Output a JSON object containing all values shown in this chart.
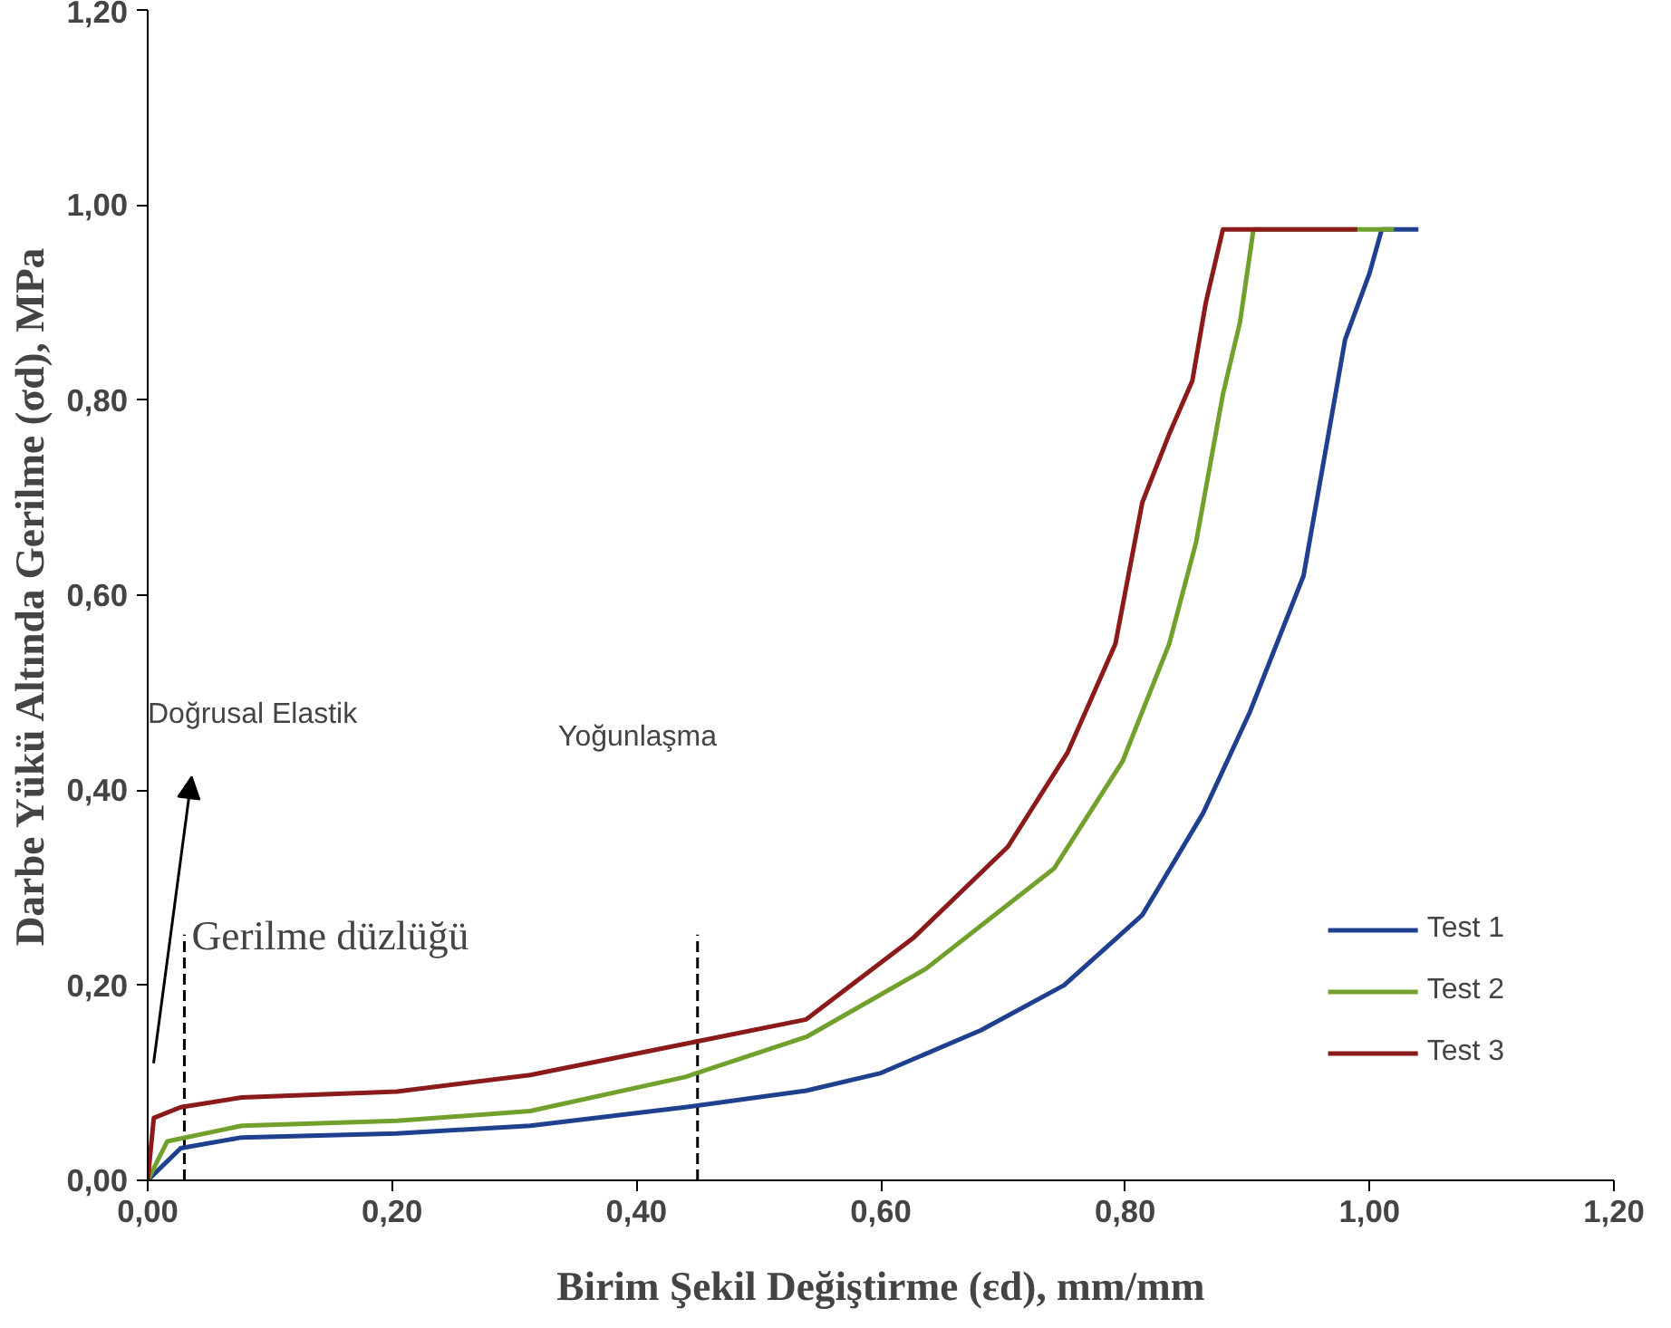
{
  "chart_data": {
    "type": "line",
    "xlabel": "Birim Şekil Değiştirme (εd), mm/mm",
    "ylabel": "Darbe Yükü Altında Gerilme (σd), MPa",
    "xlim": [
      0,
      1.2
    ],
    "ylim": [
      0,
      1.2
    ],
    "xticks": [
      {
        "value": 0,
        "label": "0,00"
      },
      {
        "value": 0.2,
        "label": "0,20"
      },
      {
        "value": 0.4,
        "label": "0,40"
      },
      {
        "value": 0.6,
        "label": "0,60"
      },
      {
        "value": 0.8,
        "label": "0,80"
      },
      {
        "value": 1.0,
        "label": "1,00"
      },
      {
        "value": 1.2,
        "label": "1,20"
      }
    ],
    "yticks": [
      {
        "value": 0,
        "label": "0,00"
      },
      {
        "value": 0.2,
        "label": "0,20"
      },
      {
        "value": 0.4,
        "label": "0,40"
      },
      {
        "value": 0.6,
        "label": "0,60"
      },
      {
        "value": 0.8,
        "label": "0,80"
      },
      {
        "value": 1.0,
        "label": "1,00"
      },
      {
        "value": 1.2,
        "label": "1,20"
      }
    ],
    "grid": false,
    "legend": "bottom right",
    "marker": "none",
    "line_style": "solid",
    "annotations": [
      "Doğrusal Elastik",
      "Yoğunlaşma",
      "Gerilme düzlüğü"
    ],
    "ref_lines": [
      {
        "axis": "x",
        "value": 0.03,
        "label": null,
        "color": "#000000",
        "line_style": "dashed"
      },
      {
        "axis": "x",
        "value": 0.45,
        "label": null,
        "color": "#000000",
        "line_style": "dashed"
      }
    ],
    "series": [
      {
        "name": "Test 1",
        "color": "#1f3f8f",
        "x": [
          0,
          0.027,
          0.077,
          0.204,
          0.313,
          0.44,
          0.539,
          0.6,
          0.682,
          0.75,
          0.814,
          0.864,
          0.902,
          0.946,
          0.98,
          1.0,
          1.01,
          1.04
        ],
        "values": [
          0,
          0.033,
          0.044,
          0.048,
          0.056,
          0.075,
          0.092,
          0.11,
          0.154,
          0.2,
          0.272,
          0.377,
          0.48,
          0.62,
          0.862,
          0.93,
          0.975,
          0.975
        ]
      },
      {
        "name": "Test 2",
        "color": "#72a02c",
        "x": [
          0,
          0.016,
          0.077,
          0.204,
          0.313,
          0.44,
          0.539,
          0.637,
          0.742,
          0.798,
          0.836,
          0.858,
          0.88,
          0.894,
          0.905,
          1.02
        ],
        "values": [
          0,
          0.04,
          0.056,
          0.061,
          0.071,
          0.106,
          0.147,
          0.217,
          0.32,
          0.43,
          0.55,
          0.654,
          0.806,
          0.88,
          0.975,
          0.975
        ]
      },
      {
        "name": "Test 3",
        "color": "#8b1a1a",
        "x": [
          0,
          0.005,
          0.027,
          0.077,
          0.204,
          0.313,
          0.44,
          0.539,
          0.627,
          0.704,
          0.753,
          0.792,
          0.814,
          0.836,
          0.855,
          0.866,
          0.88,
          0.99
        ],
        "values": [
          0,
          0.064,
          0.075,
          0.085,
          0.091,
          0.108,
          0.14,
          0.165,
          0.249,
          0.342,
          0.439,
          0.55,
          0.695,
          0.765,
          0.82,
          0.9,
          0.975,
          0.975
        ]
      }
    ]
  }
}
